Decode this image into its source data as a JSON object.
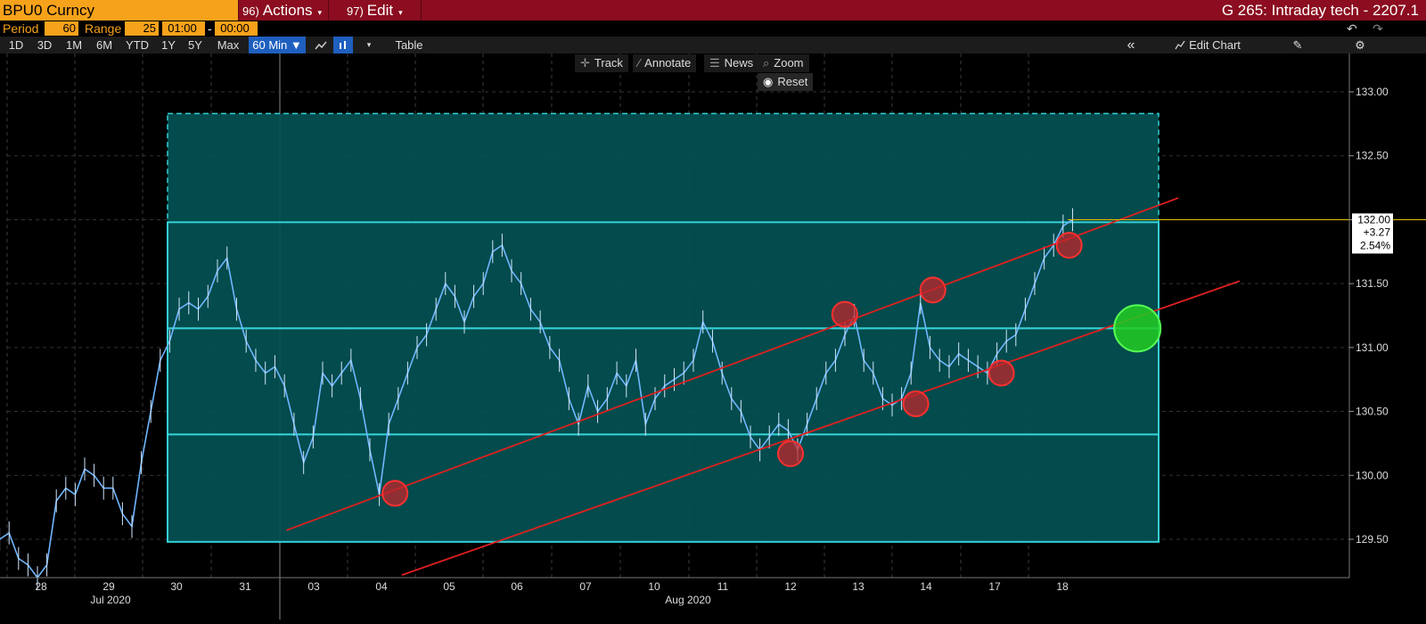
{
  "header": {
    "ticker": "BPU0 Curncy",
    "actions_num": "96)",
    "actions_label": "Actions",
    "edit_num": "97)",
    "edit_label": "Edit",
    "window_title": "G 265: Intraday tech - 2207.1",
    "caret": "▾"
  },
  "params": {
    "period_label": "Period",
    "period_value": "60",
    "range_label": "Range",
    "range_value": "25",
    "time_from": "01:00",
    "dash": "-",
    "time_to": "00:00",
    "undo_icon": "↶",
    "redo_icon": "↷"
  },
  "toolbar": {
    "ranges": [
      "1D",
      "3D",
      "1M",
      "6M",
      "YTD",
      "1Y",
      "5Y",
      "Max"
    ],
    "interval": "60 Min ▼",
    "chart_icon": "line-chart-icon",
    "table_label": "Table",
    "collapse_icon": "«",
    "edit_chart_label": "Edit Chart",
    "draw_icon": "✎",
    "settings_icon": "⚙"
  },
  "chart_buttons": {
    "track": "Track",
    "annotate": "Annotate",
    "news": "News",
    "zoom": "Zoom",
    "reset": "Reset"
  },
  "colors": {
    "background": "#000000",
    "header": "#8b0d1f",
    "ticker_bg": "#f7a21b",
    "zone_fill": "#035153",
    "zone_line": "#35d0d6",
    "trend_line": "#e02020",
    "price_line": "#6fb6ff",
    "target_marker": "#22cc22",
    "last_price_line": "#e6c200"
  },
  "chart_data": {
    "type": "line",
    "series": [
      {
        "values": [
          129.2,
          129.5,
          129.55,
          129.35,
          129.3,
          129.2,
          129.3,
          129.8,
          129.9,
          129.85,
          130.05,
          130.0,
          129.9,
          129.9,
          129.7,
          129.6,
          130.1,
          130.5,
          130.9,
          131.05,
          131.3,
          131.35,
          131.3,
          131.4,
          131.6,
          131.7,
          131.3,
          131.05,
          130.9,
          130.8,
          130.85,
          130.7,
          130.4,
          130.1,
          130.3,
          130.8,
          130.7,
          130.8,
          130.9,
          130.6,
          130.2,
          129.85,
          130.4,
          130.6,
          130.8,
          131.0,
          131.1,
          131.3,
          131.5,
          131.4,
          131.2,
          131.4,
          131.5,
          131.75,
          131.8,
          131.6,
          131.5,
          131.3,
          131.2,
          131.0,
          130.9,
          130.6,
          130.4,
          130.7,
          130.5,
          130.6,
          130.8,
          130.7,
          130.9,
          130.4,
          130.6,
          130.7,
          130.75,
          130.8,
          130.9,
          131.2,
          131.05,
          130.8,
          130.6,
          130.5,
          130.3,
          130.2,
          130.3,
          130.4,
          130.35,
          130.2,
          130.4,
          130.6,
          130.8,
          130.9,
          131.1,
          131.25,
          130.9,
          130.8,
          130.6,
          130.55,
          130.6,
          130.8,
          131.35,
          131.0,
          130.9,
          130.85,
          130.95,
          130.9,
          130.85,
          130.8,
          130.95,
          131.05,
          131.1,
          131.3,
          131.5,
          131.7,
          131.8,
          131.95,
          132.0
        ]
      }
    ],
    "x_tick_labels": [
      "28",
      "29",
      "30",
      "31",
      "03",
      "04",
      "05",
      "06",
      "07",
      "10",
      "11",
      "12",
      "13",
      "14",
      "17",
      "18"
    ],
    "x_month_labels": [
      "Jul 2020",
      "Aug 2020"
    ],
    "ylim": [
      129.2,
      133.3
    ],
    "y_ticks": [
      "133.00",
      "132.50",
      "132.00",
      "131.50",
      "131.00",
      "130.50",
      "130.00",
      "129.50"
    ],
    "last_price": {
      "value": "132.00",
      "change": "+3.27",
      "pct": "2.54%"
    },
    "zones": [
      {
        "name": "upper-dashed-zone",
        "from": 131.98,
        "to": 132.83,
        "style": "dashed"
      },
      {
        "name": "upper-range-zone",
        "from": 131.15,
        "to": 131.98,
        "style": "solid"
      },
      {
        "name": "middle-range-zone",
        "from": 130.32,
        "to": 131.15,
        "style": "solid"
      },
      {
        "name": "lower-range-zone",
        "from": 129.48,
        "to": 130.32,
        "style": "solid"
      }
    ],
    "trend_lines": [
      {
        "name": "upper-channel",
        "from": [
          3.6,
          129.57
        ],
        "to": [
          16.7,
          132.17
        ]
      },
      {
        "name": "lower-channel",
        "from": [
          5.3,
          129.22
        ],
        "to": [
          17.6,
          131.52
        ]
      }
    ],
    "touch_points": [
      {
        "x": 5.2,
        "y": 129.86
      },
      {
        "x": 11.0,
        "y": 130.17
      },
      {
        "x": 11.8,
        "y": 131.26
      },
      {
        "x": 12.85,
        "y": 130.56
      },
      {
        "x": 13.1,
        "y": 131.45
      },
      {
        "x": 14.1,
        "y": 130.8
      },
      {
        "x": 15.1,
        "y": 131.8
      }
    ],
    "target_point": {
      "x": 16.1,
      "y": 131.15
    },
    "grid": true
  }
}
